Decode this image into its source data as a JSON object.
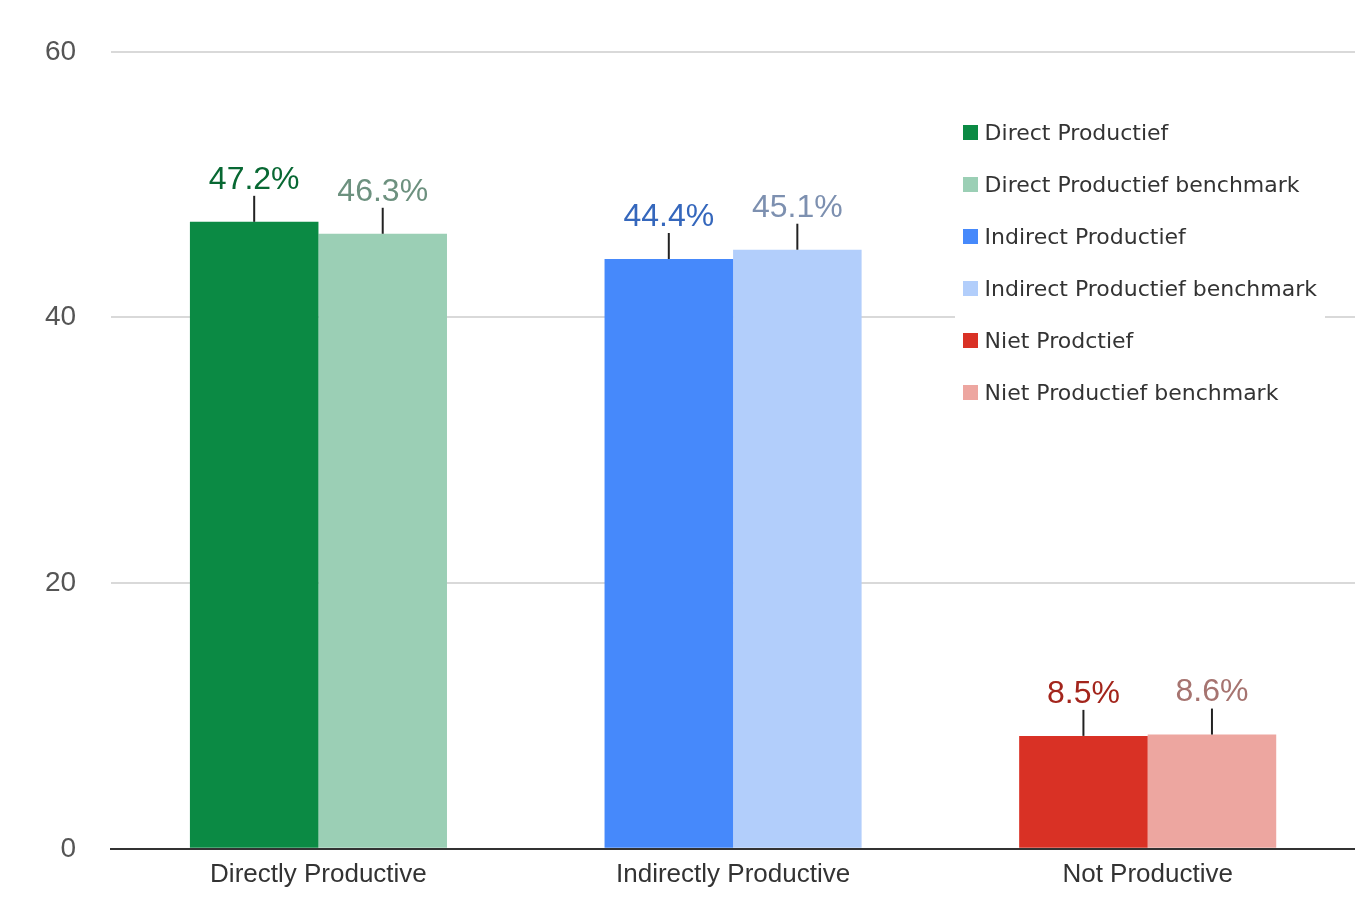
{
  "chart_data": {
    "type": "bar",
    "categories": [
      "Directly Productive",
      "Indirectly Productive",
      "Not Productive"
    ],
    "series": [
      {
        "name": "Direct Productief",
        "color": "#0b8a44",
        "values": [
          47.2,
          null,
          null
        ],
        "value_labels": [
          "47.2%",
          null,
          null
        ]
      },
      {
        "name": "Direct Productief benchmark",
        "color": "#9bcfb5",
        "values": [
          46.3,
          null,
          null
        ],
        "value_labels": [
          "46.3%",
          null,
          null
        ]
      },
      {
        "name": "Indirect Productief",
        "color": "#4689fb",
        "values": [
          null,
          44.4,
          null
        ],
        "value_labels": [
          null,
          "44.4%",
          null
        ]
      },
      {
        "name": "Indirect Productief benchmark",
        "color": "#b2cefb",
        "values": [
          null,
          45.1,
          null
        ],
        "value_labels": [
          null,
          "45.1%",
          null
        ]
      },
      {
        "name": "Niet Prodctief",
        "color": "#d93125",
        "values": [
          null,
          null,
          8.5
        ],
        "value_labels": [
          null,
          null,
          "8.5%"
        ]
      },
      {
        "name": "Niet Productief benchmark",
        "color": "#eda6a0",
        "values": [
          null,
          null,
          8.6
        ],
        "value_labels": [
          null,
          null,
          "8.6%"
        ]
      }
    ],
    "ylim": [
      0,
      60
    ],
    "yticks": [
      0,
      20,
      40,
      60
    ],
    "grid": "y",
    "legend": "top right"
  }
}
